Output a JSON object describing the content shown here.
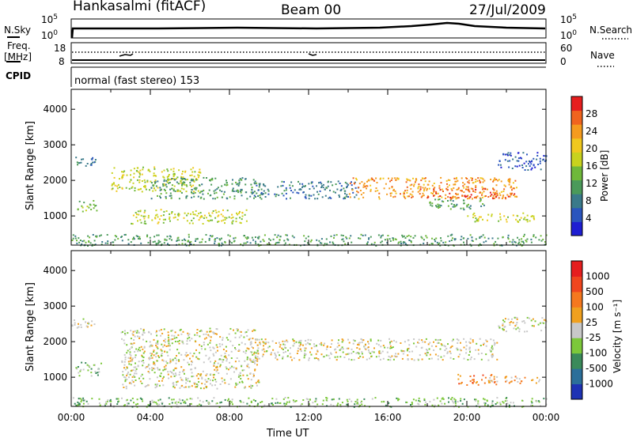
{
  "header": {
    "radar": "Hankasalmi (fitACF)",
    "beam": "Beam 00",
    "date": "27/Jul/2009"
  },
  "status_panels": {
    "nsky_label": "N.Sky",
    "nsky_ticks": [
      "10^5",
      "10^0"
    ],
    "nsearch_label": "N.Search",
    "nsearch_ticks": [
      "10^5",
      "10^0"
    ],
    "freq_label_1": "Freq.",
    "freq_label_2": "[MHz]",
    "freq_ticks": [
      "18",
      "8"
    ],
    "nave_label": "Nave",
    "nave_ticks": [
      "60",
      "0"
    ],
    "cpid_label": "CPID",
    "cpid_value": "normal (fast stereo) 153"
  },
  "chart_data": [
    {
      "type": "heatmap",
      "name": "power",
      "ylabel": "Slant Range [km]",
      "xlabel": "",
      "yticks": [
        "1000",
        "2000",
        "3000",
        "4000"
      ],
      "ylim": [
        180,
        4560
      ],
      "colorbar_label": "Power [dB]",
      "colorbar_ticks": [
        "28",
        "24",
        "20",
        "16",
        "12",
        "8",
        "4"
      ],
      "colors": [
        "#1e1ed2",
        "#2a55be",
        "#3a7a8a",
        "#4b9a5a",
        "#6fb83a",
        "#c8d21e",
        "#f0c81e",
        "#f59b1e",
        "#f0641e",
        "#e61e1e"
      ],
      "scatter_regions": [
        {
          "t": [
            0.0,
            1.2
          ],
          "r": [
            2400,
            2700
          ],
          "level": 2
        },
        {
          "t": [
            0.3,
            1.3
          ],
          "r": [
            1100,
            1450
          ],
          "level": 4
        },
        {
          "t": [
            2.0,
            6.5
          ],
          "r": [
            1700,
            2400
          ],
          "level": 5
        },
        {
          "t": [
            3.0,
            9.0
          ],
          "r": [
            800,
            1200
          ],
          "level": 5
        },
        {
          "t": [
            4.0,
            9.5
          ],
          "r": [
            1500,
            2100
          ],
          "level": 3
        },
        {
          "t": [
            9.0,
            14.5
          ],
          "r": [
            1500,
            2000
          ],
          "level": 2
        },
        {
          "t": [
            14.0,
            22.5
          ],
          "r": [
            1500,
            2100
          ],
          "level": 7
        },
        {
          "t": [
            17.5,
            22.5
          ],
          "r": [
            1500,
            1800
          ],
          "level": 8
        },
        {
          "t": [
            18.0,
            21.0
          ],
          "r": [
            1200,
            1500
          ],
          "level": 3
        },
        {
          "t": [
            20.0,
            23.5
          ],
          "r": [
            850,
            1100
          ],
          "level": 5
        },
        {
          "t": [
            21.5,
            24.0
          ],
          "r": [
            2300,
            2800
          ],
          "level": 1
        },
        {
          "t": [
            0.0,
            24.0
          ],
          "r": [
            180,
            500
          ],
          "level": 3
        }
      ]
    },
    {
      "type": "heatmap",
      "name": "velocity",
      "ylabel": "Slant Range [km]",
      "xlabel": "Time UT",
      "xticks": [
        "00:00",
        "04:00",
        "08:00",
        "12:00",
        "16:00",
        "20:00",
        "00:00"
      ],
      "yticks": [
        "1000",
        "2000",
        "3000",
        "4000"
      ],
      "ylim": [
        180,
        4560
      ],
      "colorbar_label": "Velocity [m s⁻¹]",
      "colorbar_ticks": [
        "1000",
        "500",
        "100",
        "25",
        "-25",
        "-100",
        "-500",
        "-1000"
      ],
      "colors": [
        "#1e32b4",
        "#2b6f9a",
        "#3a8a5a",
        "#7cc83a",
        "#c8c8c8",
        "#f0a01e",
        "#f5781e",
        "#f0461e",
        "#e61e1e"
      ],
      "scatter_regions": [
        {
          "t": [
            0.0,
            1.2
          ],
          "r": [
            2400,
            2700
          ],
          "level": 4
        },
        {
          "t": [
            0.2,
            1.5
          ],
          "r": [
            1050,
            1450
          ],
          "level": 3
        },
        {
          "t": [
            2.5,
            9.5
          ],
          "r": [
            700,
            2400
          ],
          "level": 4
        },
        {
          "t": [
            9.0,
            21.5
          ],
          "r": [
            1500,
            2100
          ],
          "level": 4
        },
        {
          "t": [
            19.5,
            21.5
          ],
          "r": [
            800,
            1100
          ],
          "level": 6
        },
        {
          "t": [
            21.0,
            23.8
          ],
          "r": [
            850,
            1050
          ],
          "level": 5
        },
        {
          "t": [
            21.5,
            24.0
          ],
          "r": [
            2300,
            2700
          ],
          "level": 4
        },
        {
          "t": [
            0.0,
            24.0
          ],
          "r": [
            180,
            450
          ],
          "level": 3
        }
      ]
    }
  ]
}
